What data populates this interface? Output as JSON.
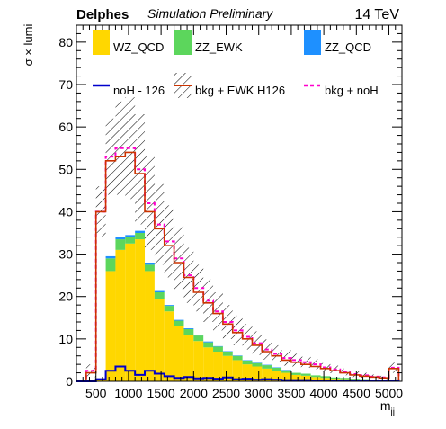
{
  "header": {
    "experiment": "Delphes",
    "status": "Simulation Preliminary",
    "energy": "14 TeV"
  },
  "colors": {
    "wz_qcd": "#FFD700",
    "zz_ewk": "#5CD65C",
    "zz_qcd": "#1E90FF",
    "noh": "#0000CC",
    "bkg_ewk_h126": "#CC3300",
    "bkg_noh": "#FF00CC",
    "hatch": "#000000"
  },
  "chart_data": {
    "type": "bar",
    "title": "",
    "xlabel": "m_jj",
    "ylabel": "σ × lumi",
    "xlim": [
      200,
      5200
    ],
    "ylim": [
      0,
      84
    ],
    "grid": false,
    "legend_placement": "top",
    "x_ticks": [
      "500",
      "1000",
      "1500",
      "2000",
      "2500",
      "3000",
      "3500",
      "4000",
      "4500",
      "5000"
    ],
    "y_ticks": [
      "0",
      "10",
      "20",
      "30",
      "40",
      "50",
      "60",
      "70",
      "80"
    ],
    "bin_edges": [
      200,
      350,
      500,
      650,
      800,
      950,
      1100,
      1250,
      1400,
      1550,
      1700,
      1850,
      2000,
      2150,
      2300,
      2450,
      2600,
      2750,
      2900,
      3050,
      3200,
      3350,
      3500,
      3650,
      3800,
      3950,
      4100,
      4250,
      4400,
      4550,
      4700,
      4850,
      5000,
      5150
    ],
    "series": [
      {
        "name": "WZ_QCD",
        "style": "stacked-fill",
        "values": [
          0,
          0,
          0.5,
          26,
          31,
          32.5,
          33.5,
          26,
          19.5,
          16.5,
          13,
          11,
          9.5,
          8,
          7,
          6,
          5,
          4,
          3.5,
          3,
          2.5,
          2,
          1.5,
          1.3,
          1,
          0.8,
          0.6,
          0.5,
          0.4,
          0.3,
          0.2,
          0.2,
          0.1
        ]
      },
      {
        "name": "ZZ_EWK",
        "style": "stacked-fill",
        "values": [
          0,
          0,
          0,
          3,
          2.5,
          1.5,
          1.5,
          1.5,
          1.5,
          1.3,
          1.3,
          1.3,
          1.3,
          1.2,
          1.2,
          1,
          1,
          0.9,
          0.8,
          0.8,
          0.7,
          0.6,
          0.5,
          0.5,
          0.4,
          0.4,
          0.3,
          0.3,
          0.2,
          0.2,
          0.2,
          0.1,
          0.1
        ]
      },
      {
        "name": "ZZ_QCD",
        "style": "stacked-fill",
        "values": [
          0,
          0,
          0,
          0.5,
          0.5,
          0.5,
          0.5,
          0.5,
          0.3,
          0.2,
          0.2,
          0.2,
          0.2,
          0.2,
          0.1,
          0.1,
          0.1,
          0.1,
          0.1,
          0.1,
          0.1,
          0.1,
          0,
          0,
          0,
          0,
          0,
          0,
          0,
          0,
          0,
          0,
          0
        ]
      },
      {
        "name": "noH - 126",
        "style": "line",
        "values": [
          0,
          0,
          0.5,
          2.5,
          3.5,
          2.5,
          1.5,
          2.5,
          1.8,
          1.2,
          0.8,
          1,
          0.7,
          0.8,
          0.6,
          0.9,
          0.5,
          0.6,
          0.4,
          0.5,
          0.4,
          0.3,
          0.3,
          0.3,
          0.2,
          0.2,
          0.1,
          0.2,
          0.1,
          0.1,
          0.1,
          0.1,
          0.1
        ]
      },
      {
        "name": "bkg + EWK H126",
        "style": "line",
        "values": [
          0,
          2,
          40,
          52,
          53,
          54,
          49,
          40,
          36,
          32,
          28,
          24.5,
          21,
          18.5,
          16,
          13.5,
          11.5,
          10,
          8.5,
          7,
          6,
          5,
          4.5,
          4,
          3.5,
          3,
          2.5,
          2,
          1.5,
          1.2,
          1,
          0.8,
          3
        ]
      },
      {
        "name": "bkg + noH",
        "style": "dashed-line",
        "values": [
          0,
          2.5,
          40,
          53,
          55,
          55,
          50,
          42,
          37,
          33,
          29,
          25,
          22,
          19,
          16.5,
          14,
          12,
          10.5,
          9,
          7.5,
          6.5,
          5.5,
          5,
          4.5,
          4,
          3.3,
          2.8,
          2.2,
          1.7,
          1.4,
          1.1,
          0.9,
          3.2
        ]
      }
    ],
    "uncertainty_band_half_width": [
      0,
      1.5,
      6,
      9,
      11,
      12,
      13,
      11,
      9.5,
      8.5,
      7.5,
      6.5,
      5.5,
      5,
      4.5,
      4,
      3.5,
      3,
      2.8,
      2.4,
      2,
      1.8,
      1.5,
      1.3,
      1.2,
      1,
      0.9,
      0.8,
      0.7,
      0.6,
      0.5,
      0.4,
      1.2
    ]
  }
}
